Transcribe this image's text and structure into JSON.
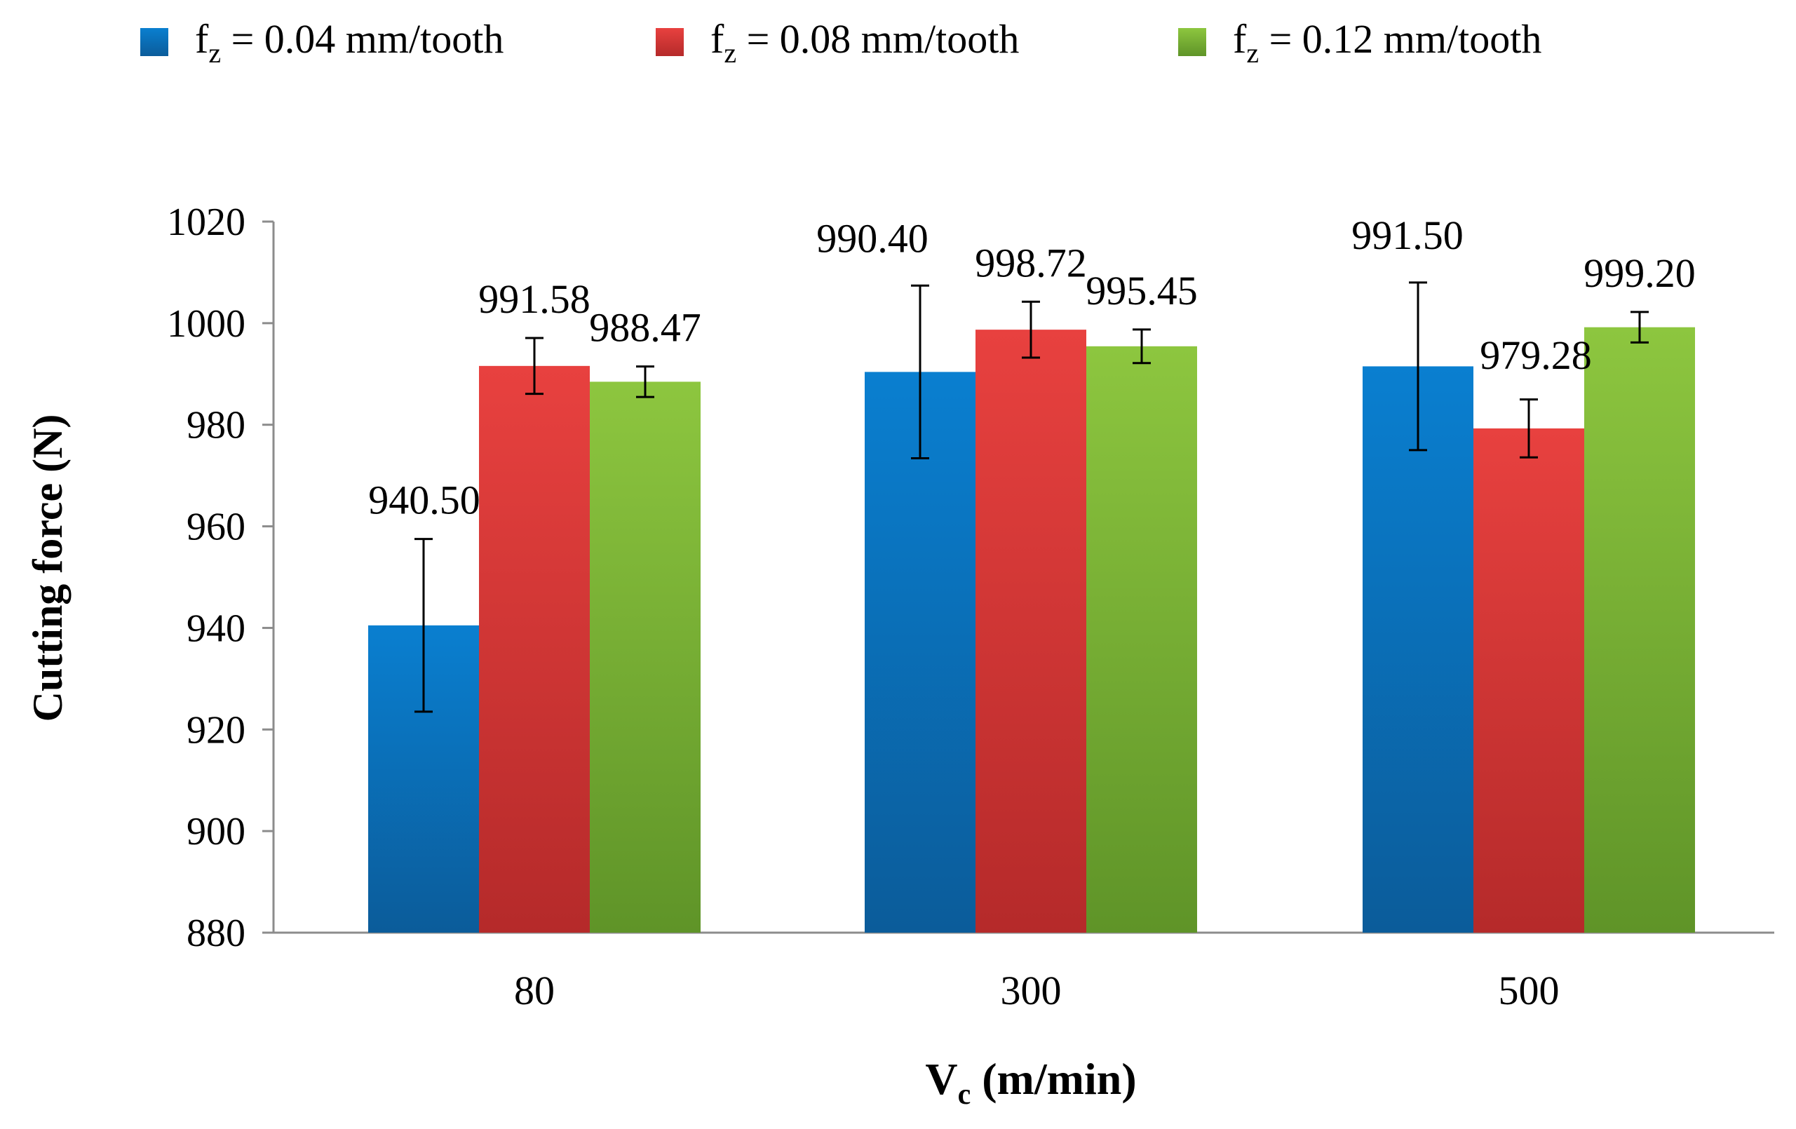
{
  "chart_data": {
    "type": "bar",
    "categories": [
      "80",
      "300",
      "500"
    ],
    "series": [
      {
        "name": "f",
        "sub": "z",
        "rest": " = 0.04 mm/tooth",
        "values": [
          940.5,
          990.4,
          991.5
        ],
        "errors": [
          17,
          17,
          16.5
        ],
        "labels": [
          "940.50",
          "990.40",
          "991.50"
        ]
      },
      {
        "name": "f",
        "sub": "z",
        "rest": " = 0.08 mm/tooth",
        "values": [
          991.58,
          998.72,
          979.28
        ],
        "errors": [
          5.5,
          5.5,
          5.7
        ],
        "labels": [
          "991.58",
          "998.72",
          "979.28"
        ]
      },
      {
        "name": "f",
        "sub": "z",
        "rest": " = 0.12 mm/tooth",
        "values": [
          988.47,
          995.45,
          999.2
        ],
        "errors": [
          3.0,
          3.3,
          3.0
        ],
        "labels": [
          "988.47",
          "995.45",
          "999.20"
        ]
      }
    ],
    "ylim": [
      880,
      1020
    ],
    "yticks": [
      "880",
      "900",
      "920",
      "940",
      "960",
      "980",
      "1000",
      "1020"
    ],
    "ylabel": "Cutting force (N)",
    "xlabel_main": "V",
    "xlabel_sub": "c",
    "xlabel_rest": " (m/min)",
    "legend_position": "top",
    "grid": false,
    "error_bars": true
  },
  "colors": {
    "series": [
      {
        "top": "#0a7fd0",
        "bottom": "#0b5c9a"
      },
      {
        "top": "#e8413f",
        "bottom": "#b52a2a"
      },
      {
        "top": "#8dc63f",
        "bottom": "#5f9428"
      }
    ],
    "axis": "#8c8c8c"
  }
}
